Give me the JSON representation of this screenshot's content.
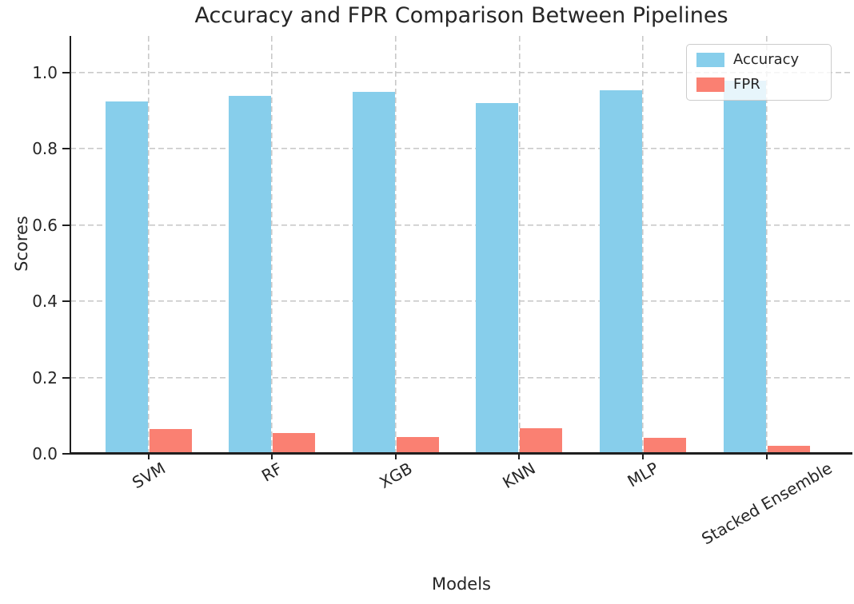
{
  "figure": {
    "title": "Accuracy and FPR Comparison Between Pipelines"
  },
  "colors": {
    "accuracy": "#87CEEB",
    "fpr": "#FA8072",
    "grid": "#c9c9c9",
    "spine": "#1f1f1f",
    "text": "#262626",
    "legend_background": "rgba(255,255,255,0.8)"
  },
  "chart_data": {
    "type": "bar",
    "title": "Accuracy and FPR Comparison Between Pipelines",
    "xlabel": "Models",
    "ylabel": "Scores",
    "categories": [
      "SVM",
      "RF",
      "XGB",
      "KNN",
      "MLP",
      "Stacked Ensemble"
    ],
    "series": [
      {
        "name": "Accuracy",
        "color": "#87CEEB",
        "values": [
          0.925,
          0.94,
          0.95,
          0.92,
          0.953,
          0.98
        ]
      },
      {
        "name": "FPR",
        "color": "#FA8072",
        "values": [
          0.064,
          0.054,
          0.045,
          0.068,
          0.042,
          0.022
        ]
      }
    ],
    "ylim": [
      0,
      1.1
    ],
    "yticks": [
      0.0,
      0.2,
      0.4,
      0.6,
      0.8,
      1.0
    ],
    "grid": true,
    "grid_style": "dashed",
    "bar_width_fraction": 0.35,
    "xtick_rotation_deg": 30,
    "legend_position": "upper right"
  }
}
